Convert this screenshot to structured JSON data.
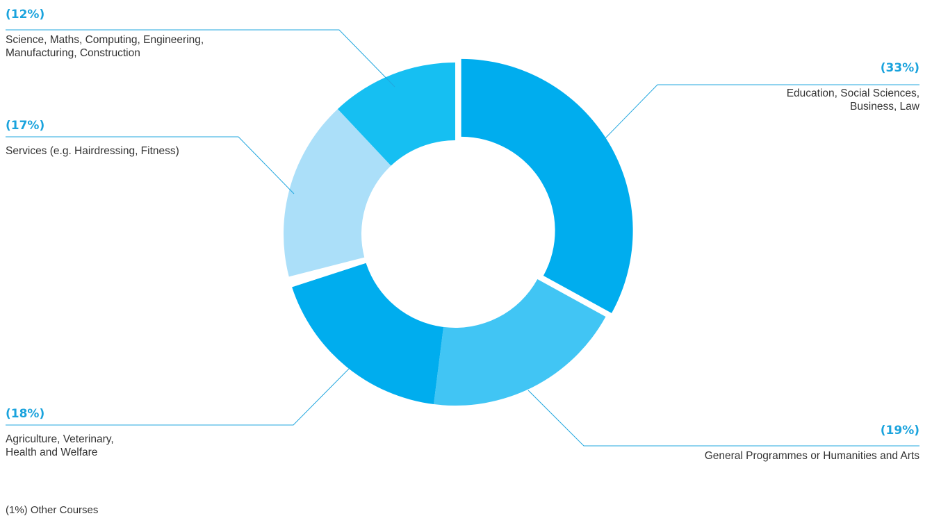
{
  "chart_data": {
    "type": "pie",
    "title": "",
    "slices": [
      {
        "pct_label": "(33%)",
        "value": 33,
        "label_lines": [
          "Education, Social Sciences,",
          "Business, Law"
        ],
        "color": "#00adee"
      },
      {
        "pct_label": "(19%)",
        "value": 19,
        "label_lines": [
          "General Programmes or Humanities and Arts"
        ],
        "color": "#41c5f4"
      },
      {
        "pct_label": "(18%)",
        "value": 18,
        "label_lines": [
          "Agriculture, Veterinary,",
          "Health and Welfare"
        ],
        "color": "#00adee"
      },
      {
        "pct_label": "",
        "value": 1,
        "label_lines": [],
        "color": "#ffffff"
      },
      {
        "pct_label": "(17%)",
        "value": 17,
        "label_lines": [
          "Services (e.g. Hairdressing, Fitness)"
        ],
        "color": "#abdff9"
      },
      {
        "pct_label": "(12%)",
        "value": 12,
        "label_lines": [
          "Science, Maths, Computing, Engineering,",
          "Manufacturing, Construction"
        ],
        "color": "#16bff2"
      }
    ],
    "footnote": "(1%) Other Courses",
    "leader_color": "#22a7df",
    "percent_color": "#1aa3dd"
  }
}
